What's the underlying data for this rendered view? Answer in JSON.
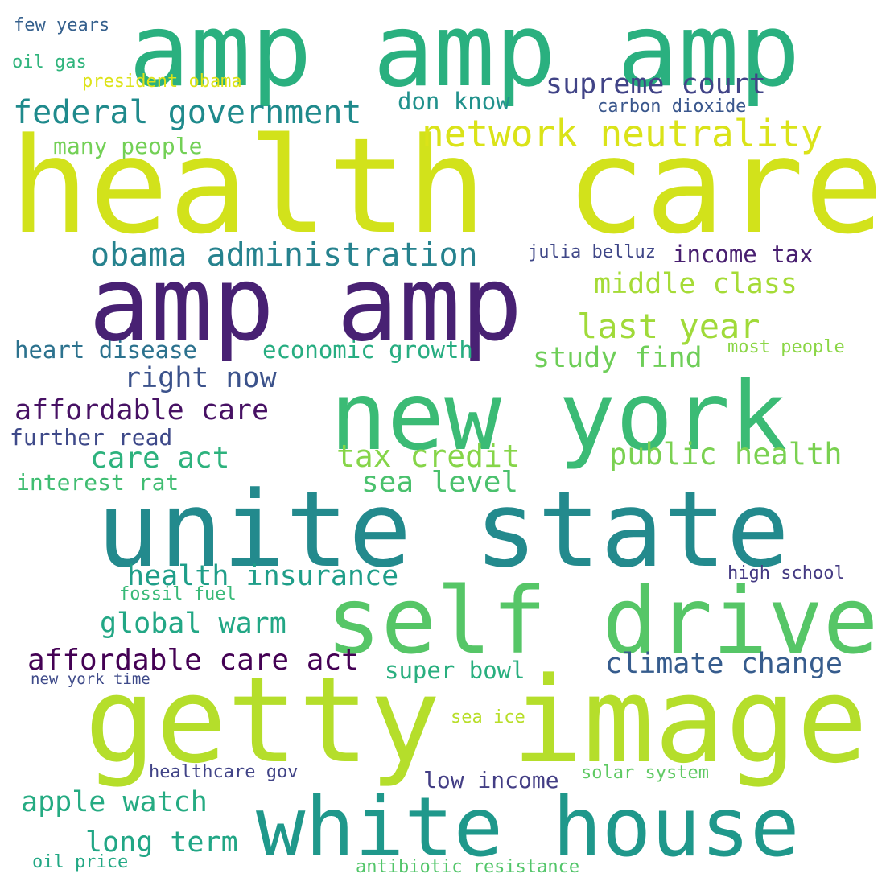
{
  "words": [
    {
      "text": "health care",
      "color": "#d2e21b"
    },
    {
      "text": "amp amp amp",
      "color": "#2ab07f"
    },
    {
      "text": "amp amp",
      "color": "#482173"
    },
    {
      "text": "new york",
      "color": "#3bbb75"
    },
    {
      "text": "unite state",
      "color": "#238a8d"
    },
    {
      "text": "self drive",
      "color": "#56c667"
    },
    {
      "text": "getty image",
      "color": "#b5de2b"
    },
    {
      "text": "white house",
      "color": "#1f988b"
    },
    {
      "text": "network neutrality",
      "color": "#dae319"
    },
    {
      "text": "federal government",
      "color": "#1f8a8c"
    },
    {
      "text": "obama administration",
      "color": "#26828e"
    },
    {
      "text": "supreme court",
      "color": "#414487"
    },
    {
      "text": "affordable care act",
      "color": "#440154"
    },
    {
      "text": "affordable care",
      "color": "#471164"
    },
    {
      "text": "last year",
      "color": "#a0da39"
    },
    {
      "text": "middle class",
      "color": "#a5db36"
    },
    {
      "text": "tax credit",
      "color": "#86d549"
    },
    {
      "text": "public health",
      "color": "#7ad151"
    },
    {
      "text": "sea level",
      "color": "#4ac16d"
    },
    {
      "text": "care act",
      "color": "#2db27d"
    },
    {
      "text": "right now",
      "color": "#3b528b"
    },
    {
      "text": "study find",
      "color": "#6ece58"
    },
    {
      "text": "health insurance",
      "color": "#1f9e89"
    },
    {
      "text": "global warm",
      "color": "#22a785"
    },
    {
      "text": "climate change",
      "color": "#365c8d"
    },
    {
      "text": "apple watch",
      "color": "#25ab82"
    },
    {
      "text": "long term",
      "color": "#21a685"
    },
    {
      "text": "super bowl",
      "color": "#29af7f"
    },
    {
      "text": "don know",
      "color": "#21918c"
    },
    {
      "text": "heart disease",
      "color": "#2c728e"
    },
    {
      "text": "economic growth",
      "color": "#27ad81"
    },
    {
      "text": "income tax",
      "color": "#481f70"
    },
    {
      "text": "further read",
      "color": "#3e4989"
    },
    {
      "text": "many people",
      "color": "#73d056"
    },
    {
      "text": "interest rat",
      "color": "#40bd72"
    },
    {
      "text": "low income",
      "color": "#433e85"
    },
    {
      "text": "julia belluz",
      "color": "#3f4788"
    },
    {
      "text": "carbon dioxide",
      "color": "#39568c"
    },
    {
      "text": "president obama",
      "color": "#dde318"
    },
    {
      "text": "few years",
      "color": "#35608d"
    },
    {
      "text": "oil gas",
      "color": "#2fb47c"
    },
    {
      "text": "most people",
      "color": "#8bd646"
    },
    {
      "text": "high school",
      "color": "#443a83"
    },
    {
      "text": "fossil fuel",
      "color": "#38b977"
    },
    {
      "text": "new york time",
      "color": "#3e4a89"
    },
    {
      "text": "sea ice",
      "color": "#b8de29"
    },
    {
      "text": "healthcare gov",
      "color": "#414487"
    },
    {
      "text": "solar system",
      "color": "#5ec962"
    },
    {
      "text": "oil price",
      "color": "#22a884"
    },
    {
      "text": "antibiotic resistance",
      "color": "#52c569"
    }
  ]
}
